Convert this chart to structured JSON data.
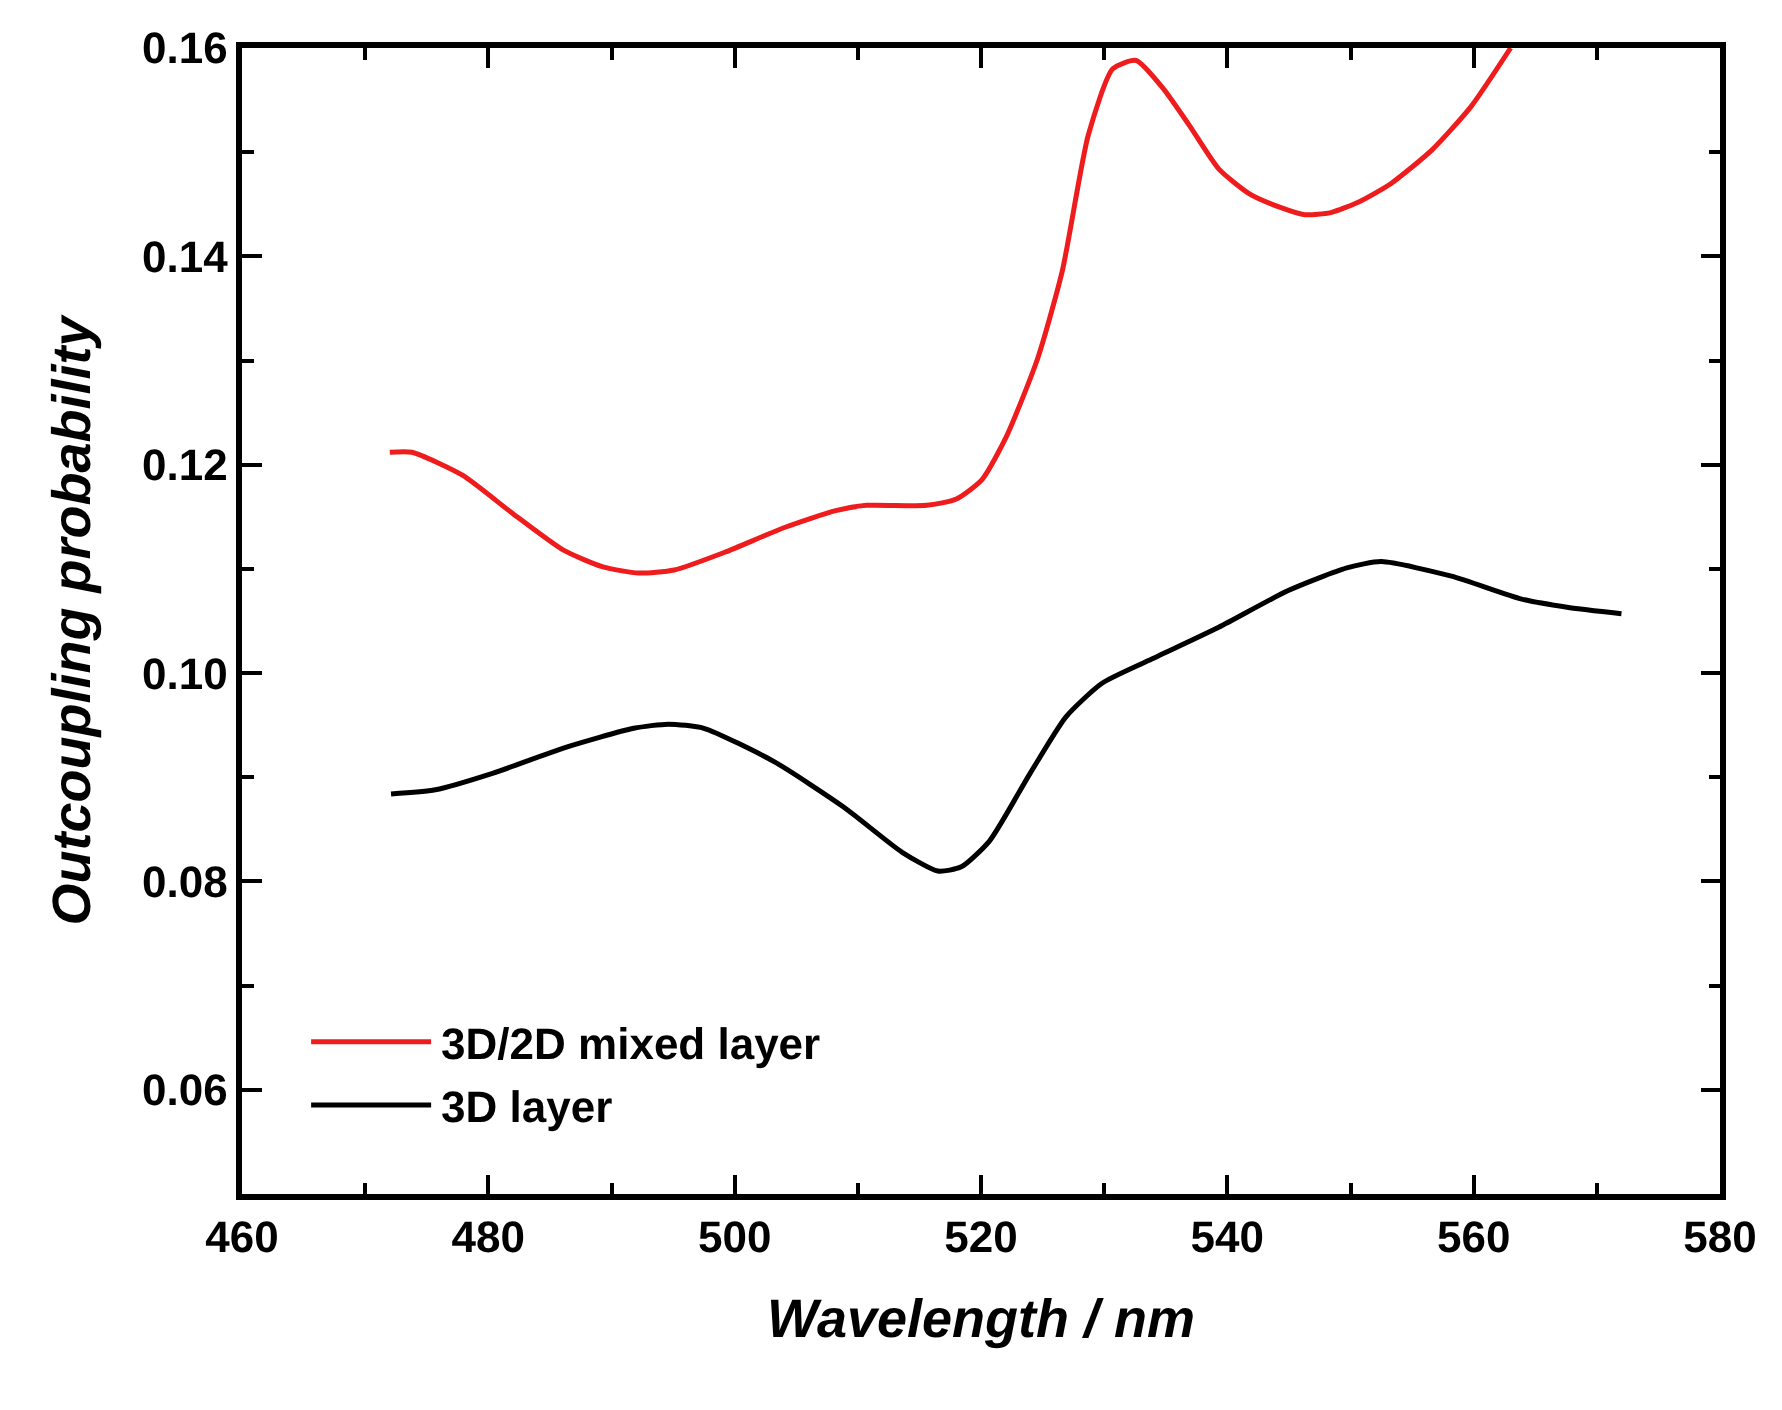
{
  "chart_data": {
    "type": "line",
    "xlabel": "Wavelength / nm",
    "ylabel": "Outcoupling probability",
    "xlim": [
      460,
      580
    ],
    "ylim": [
      0.05,
      0.16
    ],
    "xticks": [
      460,
      {
        "value": 470,
        "label": null
      },
      480,
      {
        "value": 490,
        "label": null
      },
      500,
      {
        "value": 510,
        "label": null
      },
      520,
      {
        "value": 530,
        "label": null
      },
      540,
      {
        "value": 550,
        "label": null
      },
      560,
      {
        "value": 570,
        "label": null
      },
      580
    ],
    "yticks": [
      {
        "value": 0.05,
        "label": null
      },
      0.06,
      {
        "value": 0.07,
        "label": null
      },
      0.08,
      {
        "value": 0.09,
        "label": null
      },
      {
        "value": 0.1,
        "label": "0.10"
      },
      {
        "value": 0.11,
        "label": null
      },
      0.12,
      {
        "value": 0.13,
        "label": null
      },
      0.14,
      {
        "value": 0.15,
        "label": null
      },
      0.16
    ],
    "legend": "bottom left",
    "marker": "none",
    "line_style": "solid",
    "series": [
      {
        "name": "3D/2D mixed layer",
        "color": "#ee1c1c",
        "x": [
          472.0,
          473.8,
          477.9,
          482.0,
          486.1,
          489.3,
          492.2,
          495.1,
          499.2,
          504.1,
          508.2,
          510.7,
          515.6,
          518.0,
          520.1,
          522.1,
          524.6,
          526.6,
          528.7,
          530.7,
          532.6,
          534.8,
          536.9,
          539.3,
          541.8,
          544.3,
          546.3,
          548.4,
          550.8,
          553.3,
          556.6,
          559.8,
          563.0
        ],
        "values": [
          0.1212,
          0.1212,
          0.119,
          0.1153,
          0.1118,
          0.1102,
          0.1096,
          0.1099,
          0.1116,
          0.114,
          0.1156,
          0.1161,
          0.1161,
          0.1167,
          0.1186,
          0.1228,
          0.1302,
          0.1386,
          0.1516,
          0.158,
          0.1588,
          0.1561,
          0.1526,
          0.1484,
          0.146,
          0.1447,
          0.144,
          0.1442,
          0.1453,
          0.147,
          0.1502,
          0.1544,
          0.16
        ]
      },
      {
        "name": "3D layer",
        "color": "#000000",
        "x": [
          472.1,
          475.7,
          480.4,
          486.1,
          491.8,
          494.6,
          497.5,
          503.2,
          508.9,
          513.6,
          516.5,
          518.4,
          520.7,
          524.0,
          526.9,
          529.8,
          533.6,
          539.3,
          544.9,
          549.7,
          552.5,
          558.2,
          563.9,
          567.7,
          572.0
        ],
        "values": [
          0.0884,
          0.0888,
          0.0904,
          0.0928,
          0.0947,
          0.0951,
          0.0947,
          0.0915,
          0.0871,
          0.0828,
          0.081,
          0.0814,
          0.0839,
          0.0904,
          0.0958,
          0.099,
          0.1012,
          0.1044,
          0.1079,
          0.1101,
          0.1107,
          0.1093,
          0.1071,
          0.1063,
          0.1057
        ]
      }
    ]
  }
}
